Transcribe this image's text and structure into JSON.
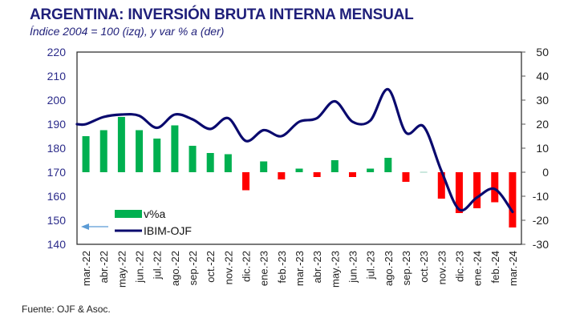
{
  "header": {
    "title": "ARGENTINA: INVERSIÓN BRUTA INTERNA MENSUAL",
    "subtitle": "Índice 2004 = 100 (izq), y var % a (der)"
  },
  "footer": {
    "source": "Fuente: OJF & Asoc."
  },
  "colors": {
    "title": "#1f1f7a",
    "line": "#0a0a6e",
    "bar_positive": "#00b050",
    "bar_negative": "#ff0000",
    "arrow": "#5b9bd5"
  },
  "chart_data": {
    "type": "bar+line",
    "title": "ARGENTINA: INVERSIÓN BRUTA INTERNA MENSUAL",
    "subtitle": "Índice 2004 = 100 (izq), y var % a (der)",
    "categories": [
      "mar.-22",
      "abr.-22",
      "may.-22",
      "jun.-22",
      "jul.-22",
      "ago.-22",
      "sep.-22",
      "oct.-22",
      "nov.-22",
      "dic.-22",
      "ene.-23",
      "feb.-23",
      "mar.-23",
      "abr.-23",
      "may.-23",
      "jun.-23",
      "jul.-23",
      "ago.-23",
      "sep.-23",
      "oct.-23",
      "nov.-23",
      "dic.-23",
      "ene.-24",
      "feb.-24",
      "mar.-24"
    ],
    "series": [
      {
        "name": "v%a",
        "type": "bar",
        "axis": "right",
        "values": [
          15,
          17.5,
          23,
          17.5,
          14,
          19.5,
          11,
          8,
          7.5,
          -7.5,
          4.5,
          -3,
          1.5,
          -2,
          5,
          -2,
          1.5,
          6,
          -4,
          0.2,
          -11,
          -17,
          -15,
          -12.5,
          -23
        ]
      },
      {
        "name": "IBIM-OJF",
        "type": "line",
        "axis": "left",
        "values": [
          190,
          193,
          194,
          193.5,
          188.5,
          194,
          192,
          188,
          192.5,
          183,
          187.5,
          185,
          191,
          192.5,
          199.5,
          191,
          191.5,
          204.5,
          186.5,
          189,
          170.5,
          154.5,
          159.5,
          163,
          153.5
        ]
      }
    ],
    "y_left": {
      "min": 140,
      "max": 220,
      "ticks": [
        "220",
        "210",
        "200",
        "190",
        "180",
        "170",
        "160",
        "150",
        "140"
      ]
    },
    "y_right": {
      "min": -30,
      "max": 50,
      "ticks": [
        "50",
        "40",
        "30",
        "20",
        "10",
        "0",
        "-10",
        "-20",
        "-30"
      ]
    },
    "legend": {
      "position": "bottom-left",
      "entries": [
        {
          "label": "v%a",
          "kind": "bar"
        },
        {
          "label": "IBIM-OJF",
          "kind": "line"
        }
      ],
      "annotation": "left-arrow-icon pointing to left axis"
    },
    "grid": false
  }
}
